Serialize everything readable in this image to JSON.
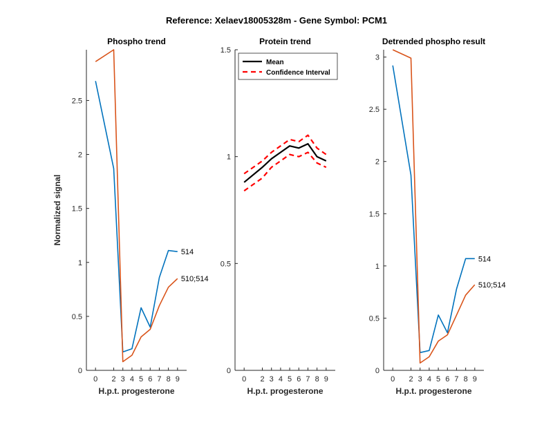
{
  "figure_title": "Reference:  Xelaev18005328m - Gene Symbol:  PCM1",
  "colors": {
    "series_blue": "#0072BD",
    "series_orange": "#D95319",
    "mean": "#000000",
    "ci": "#FF0000",
    "axis": "#262626"
  },
  "chart_data": [
    {
      "type": "line",
      "title": "Phospho trend",
      "xlabel": "H.p.t. progesterone",
      "ylabel": "Normalized signal",
      "x": [
        0,
        2,
        3,
        4,
        5,
        6,
        7,
        8,
        9
      ],
      "xticks": [
        "0",
        "2",
        "3",
        "4",
        "5",
        "6",
        "7",
        "8",
        "9"
      ],
      "ylim": [
        0,
        2.97
      ],
      "yticks": [
        "0",
        "0.5",
        "1",
        "1.5",
        "2",
        "2.5"
      ],
      "ytick_values": [
        0,
        0.5,
        1,
        1.5,
        2,
        2.5
      ],
      "series": [
        {
          "name": "514",
          "color": "#0072BD",
          "values": [
            2.68,
            1.87,
            0.17,
            0.2,
            0.58,
            0.4,
            0.86,
            1.11,
            1.1
          ]
        },
        {
          "name": "510;514",
          "color": "#D95319",
          "values": [
            2.86,
            2.97,
            0.08,
            0.14,
            0.31,
            0.38,
            0.6,
            0.77,
            0.85
          ]
        }
      ],
      "grid": false
    },
    {
      "type": "line",
      "title": "Protein trend",
      "xlabel": "H.p.t. progesterone",
      "ylabel": "",
      "x": [
        0,
        2,
        3,
        4,
        5,
        6,
        7,
        8,
        9
      ],
      "xticks": [
        "0",
        "2",
        "3",
        "4",
        "5",
        "6",
        "7",
        "8",
        "9"
      ],
      "ylim": [
        0,
        1.5
      ],
      "yticks": [
        "0",
        "0.5",
        "1",
        "1.5"
      ],
      "ytick_values": [
        0,
        0.5,
        1,
        1.5
      ],
      "series": [
        {
          "name": "Mean",
          "style": "solid",
          "color": "#000000",
          "values": [
            0.88,
            0.95,
            0.99,
            1.02,
            1.05,
            1.04,
            1.06,
            1.0,
            0.98
          ]
        },
        {
          "name": "Confidence Interval",
          "style": "dashed",
          "color": "#FF0000",
          "values": [
            0.92,
            0.98,
            1.02,
            1.05,
            1.08,
            1.07,
            1.1,
            1.04,
            1.01
          ]
        },
        {
          "name": "",
          "style": "dashed",
          "color": "#FF0000",
          "values": [
            0.84,
            0.9,
            0.95,
            0.98,
            1.01,
            1.0,
            1.02,
            0.97,
            0.95
          ]
        }
      ],
      "legend": {
        "placement": "top-left",
        "entries": [
          "Mean",
          "Confidence Interval"
        ]
      },
      "grid": false
    },
    {
      "type": "line",
      "title": "Detrended phospho result",
      "xlabel": "H.p.t. progesterone",
      "ylabel": "",
      "x": [
        0,
        2,
        3,
        4,
        5,
        6,
        7,
        8,
        9
      ],
      "xticks": [
        "0",
        "2",
        "3",
        "4",
        "5",
        "6",
        "7",
        "8",
        "9"
      ],
      "ylim": [
        0,
        3.07
      ],
      "yticks": [
        "0",
        "0.5",
        "1",
        "1.5",
        "2",
        "2.5",
        "3"
      ],
      "ytick_values": [
        0,
        0.5,
        1,
        1.5,
        2,
        2.5,
        3
      ],
      "series": [
        {
          "name": "514",
          "color": "#0072BD",
          "values": [
            2.92,
            1.87,
            0.17,
            0.19,
            0.53,
            0.36,
            0.78,
            1.07,
            1.07
          ]
        },
        {
          "name": "510;514",
          "color": "#D95319",
          "values": [
            3.07,
            2.99,
            0.07,
            0.13,
            0.28,
            0.34,
            0.53,
            0.72,
            0.82
          ]
        }
      ],
      "grid": false
    }
  ]
}
